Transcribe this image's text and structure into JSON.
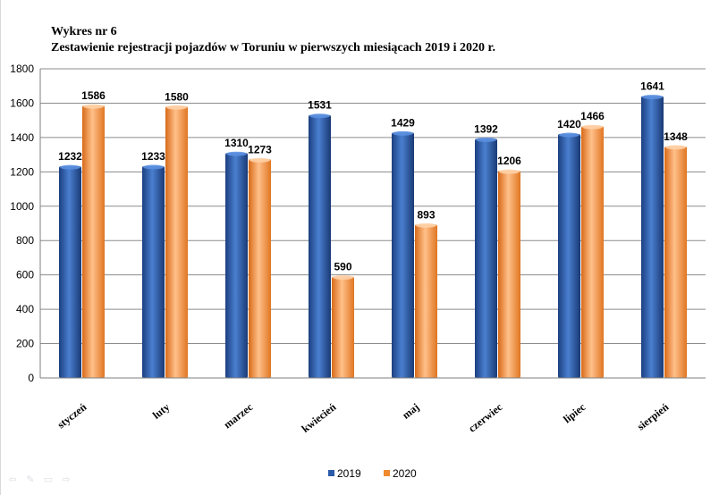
{
  "chart_data": {
    "type": "bar",
    "title": "Wykres nr  6",
    "subtitle": "Zestawienie rejestracji pojazdów w Toruniu w pierwszych miesiącach 2019 i 2020 r.",
    "categories": [
      "styczeń",
      "luty",
      "marzec",
      "kwiecień",
      "maj",
      "czerwiec",
      "lipiec",
      "sierpień"
    ],
    "series": [
      {
        "name": "2019",
        "values": [
          1232,
          1233,
          1310,
          1531,
          1429,
          1392,
          1420,
          1641
        ],
        "color": "#2a5aa8"
      },
      {
        "name": "2020",
        "values": [
          1586,
          1580,
          1273,
          590,
          893,
          1206,
          1466,
          1348
        ],
        "color": "#f08a2e"
      }
    ],
    "ylim": [
      0,
      1800
    ],
    "yticks": [
      0,
      200,
      400,
      600,
      800,
      1000,
      1200,
      1400,
      1600,
      1800
    ],
    "grid": true,
    "legend_position": "bottom",
    "data_labels": true
  },
  "controls": {
    "icons": [
      "arrow-left-icon",
      "pen-icon",
      "menu-icon",
      "arrow-right-icon"
    ],
    "glyphs": [
      "⇦",
      "✎",
      "▭",
      "⇨"
    ]
  }
}
